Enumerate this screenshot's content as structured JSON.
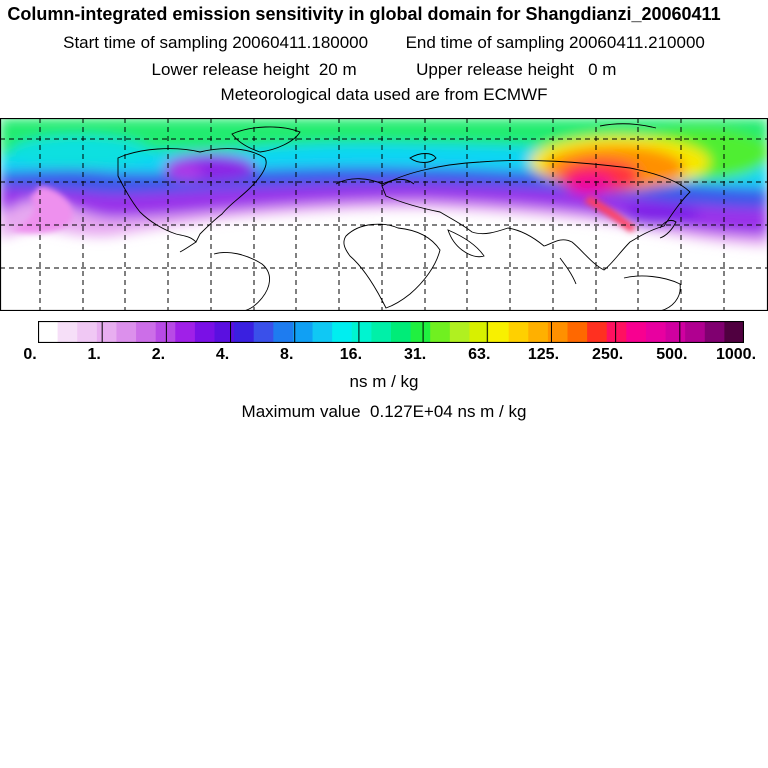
{
  "header": {
    "title": "Column-integrated emission sensitivity in global domain for Shangdianzi_20060411",
    "sampling_start_label": "Start time of sampling",
    "sampling_start": "20060411.180000",
    "sampling_end_label": "End time of sampling",
    "sampling_end": "20060411.210000",
    "lower_height_label": "Lower release height",
    "lower_height": "20 m",
    "upper_height_label": "Upper release height",
    "upper_height": "0 m",
    "met_data": "Meteorological data used are from ECMWF"
  },
  "legend": {
    "ticks": [
      "0.",
      "1.",
      "2.",
      "4.",
      "8.",
      "16.",
      "31.",
      "63.",
      "125.",
      "250.",
      "500.",
      "1000."
    ],
    "unit": "ns m / kg",
    "max_label": "Maximum value",
    "max_value": "0.127E+04 ns m / kg",
    "colors": [
      "#ffffff",
      "#f6dff8",
      "#f0c8f4",
      "#e8aef0",
      "#dc90ec",
      "#cc6ee8",
      "#b84ae6",
      "#a020e8",
      "#7a10e6",
      "#5a10e0",
      "#3a20e0",
      "#3a50ea",
      "#1e7cf0",
      "#10a0f4",
      "#10c8f4",
      "#00eef0",
      "#00f4d0",
      "#00f0a8",
      "#00ec78",
      "#20f040",
      "#70f020",
      "#b0f020",
      "#d8f000",
      "#f8f000",
      "#ffd000",
      "#ffb000",
      "#ff9000",
      "#ff6800",
      "#ff3020",
      "#ff1060",
      "#f80090",
      "#e800a0",
      "#d000a0",
      "#b00090",
      "#800070",
      "#500040"
    ]
  }
}
